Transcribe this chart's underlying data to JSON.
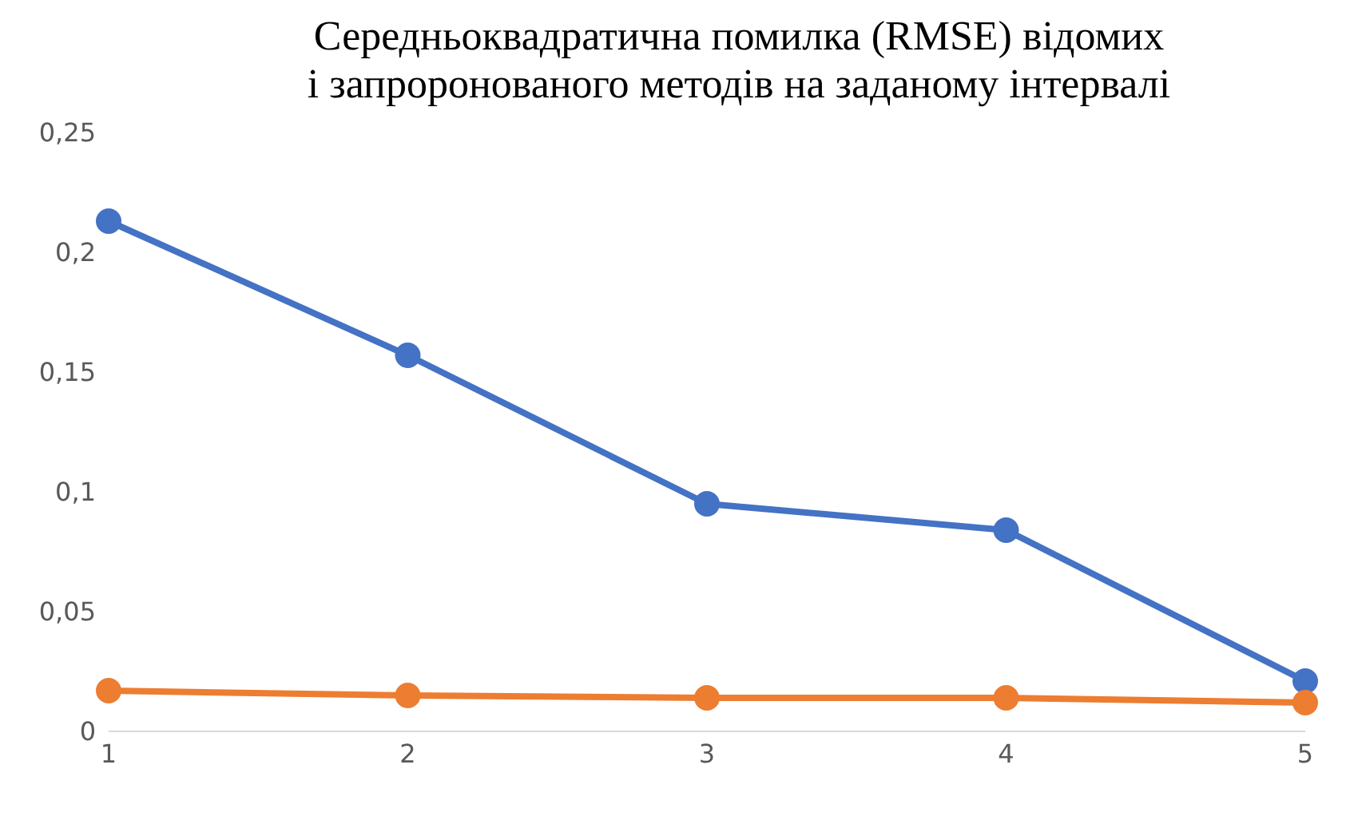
{
  "chart_data": {
    "type": "line",
    "title": "Середньоквадратична помилка (RMSE) відомих\nі запроронованого методів на заданому інтервалі",
    "categories": [
      "1",
      "2",
      "3",
      "4",
      "5"
    ],
    "series": [
      {
        "color": "#4472c4",
        "values": [
          0.213,
          0.157,
          0.095,
          0.084,
          0.021
        ]
      },
      {
        "color": "#ed7d31",
        "values": [
          0.017,
          0.015,
          0.014,
          0.014,
          0.012
        ]
      }
    ],
    "ylim": [
      0,
      0.25
    ],
    "yticks": [
      {
        "value": 0,
        "label": "0"
      },
      {
        "value": 0.05,
        "label": "0,05"
      },
      {
        "value": 0.1,
        "label": "0,1"
      },
      {
        "value": 0.15,
        "label": "0,15"
      },
      {
        "value": 0.2,
        "label": "0,2"
      },
      {
        "value": 0.25,
        "label": "0,25"
      }
    ],
    "grid": false,
    "legend": false,
    "marker": "circle",
    "line_style": "solid"
  }
}
